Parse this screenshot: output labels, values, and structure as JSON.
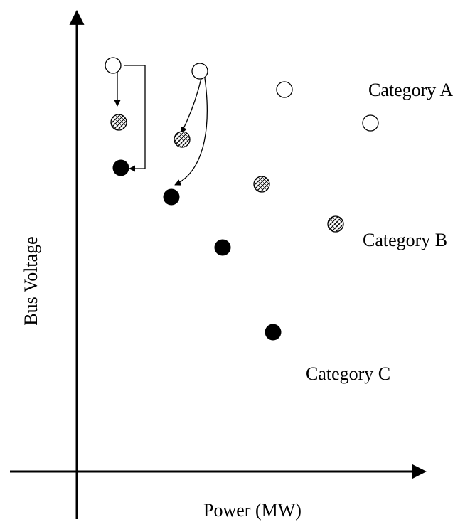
{
  "axes": {
    "xlabel": "Power (MW)",
    "ylabel": "Bus Voltage"
  },
  "categories": {
    "a": {
      "label": "Category A",
      "marker": "open-circle",
      "points": 4
    },
    "b": {
      "label": "Category B",
      "marker": "hatched-circle",
      "points": 4
    },
    "c": {
      "label": "Category C",
      "marker": "filled-circle",
      "points": 4
    }
  },
  "colors": {
    "ink": "#000000",
    "background": "#ffffff"
  }
}
